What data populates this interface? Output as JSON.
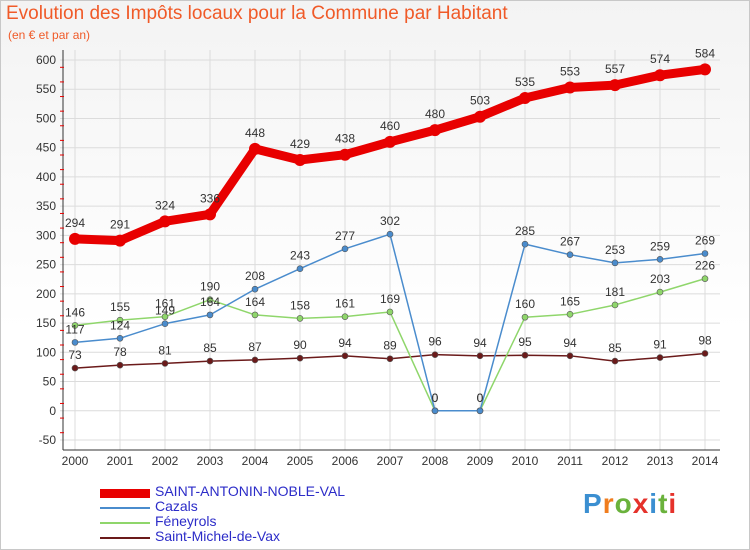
{
  "header": {
    "title": "Evolution des Impôts locaux pour la Commune par Habitant",
    "subtitle": "(en € et par an)"
  },
  "logo": {
    "text": "Proxiti",
    "colors": [
      "#3b8fd1",
      "#f07d1e",
      "#6ab23c",
      "#e5322b",
      "#3b8fd1",
      "#6ab23c",
      "#e5322b"
    ]
  },
  "chart_data": {
    "type": "line",
    "title": "Evolution des Impôts locaux pour la Commune par Habitant",
    "subtitle": "(en € et par an)",
    "x": [
      "2000",
      "2001",
      "2002",
      "2003",
      "2004",
      "2005",
      "2006",
      "2007",
      "2008",
      "2009",
      "2010",
      "2011",
      "2012",
      "2013",
      "2014"
    ],
    "ylim": [
      -50,
      600
    ],
    "yticks": [
      -50,
      0,
      50,
      100,
      150,
      200,
      250,
      300,
      350,
      400,
      450,
      500,
      550,
      600
    ],
    "grid": true,
    "legend_position": "bottom-left",
    "series": [
      {
        "name": "SAINT-ANTONIN-NOBLE-VAL",
        "color": "#e80000",
        "emphasis": "thick",
        "values": [
          294,
          291,
          324,
          336,
          448,
          429,
          438,
          460,
          480,
          503,
          535,
          553,
          557,
          574,
          584
        ]
      },
      {
        "name": "Cazals",
        "color": "#4a8ccd",
        "emphasis": "thin",
        "values": [
          117,
          124,
          149,
          164,
          208,
          243,
          277,
          302,
          0,
          0,
          285,
          267,
          253,
          259,
          269
        ]
      },
      {
        "name": "Féneyrols",
        "color": "#8fd66b",
        "emphasis": "thin",
        "values": [
          146,
          155,
          161,
          190,
          164,
          158,
          161,
          169,
          0,
          0,
          160,
          165,
          181,
          203,
          226
        ]
      },
      {
        "name": "Saint-Michel-de-Vax",
        "color": "#6b1a1a",
        "emphasis": "thin",
        "values": [
          73,
          78,
          81,
          85,
          87,
          90,
          94,
          89,
          96,
          94,
          95,
          94,
          85,
          91,
          98
        ]
      }
    ]
  }
}
